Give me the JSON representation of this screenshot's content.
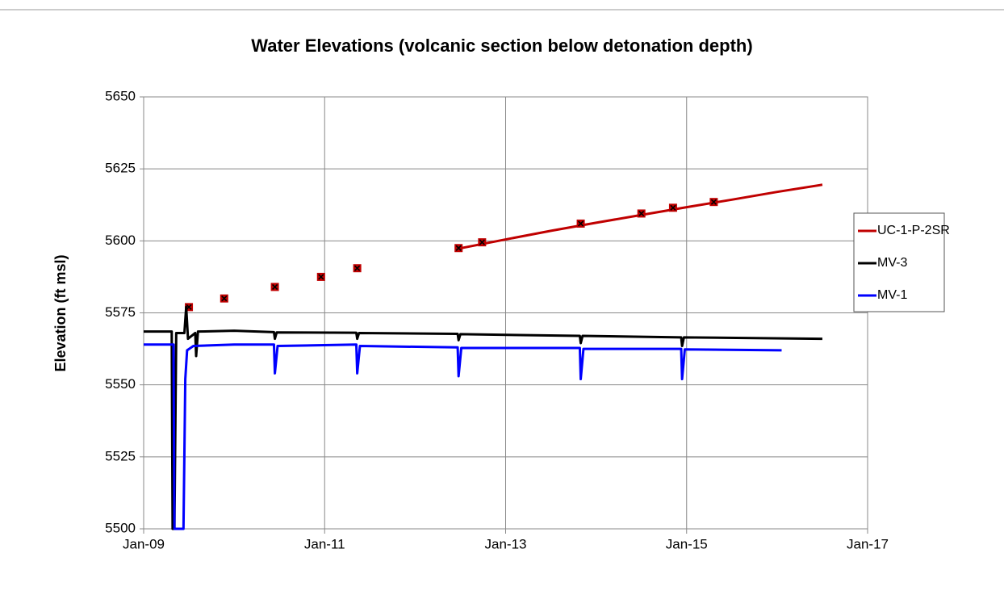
{
  "chart_data": {
    "type": "line",
    "title": "Water Elevations (volcanic section below detonation depth)",
    "y_label": "Elevation (ft msl)",
    "xlim": [
      2009,
      2017
    ],
    "xticks": [
      {
        "value": 2009,
        "label": "Jan-09"
      },
      {
        "value": 2011,
        "label": "Jan-11"
      },
      {
        "value": 2013,
        "label": "Jan-13"
      },
      {
        "value": 2015,
        "label": "Jan-15"
      },
      {
        "value": 2017,
        "label": "Jan-17"
      }
    ],
    "ylim": [
      5500,
      5650
    ],
    "yticks": [
      5500,
      5525,
      5550,
      5575,
      5600,
      5625,
      5650
    ],
    "grid": true,
    "legend": "right",
    "series": [
      {
        "name": "UC-1-P-2SR",
        "color": "#c00000",
        "x": [
          2012.48,
          2013,
          2013.5,
          2014,
          2014.5,
          2015,
          2015.5,
          2016,
          2016.5
        ],
        "values": [
          5597.3,
          5600.5,
          5603.5,
          5606.3,
          5609,
          5611.7,
          5614.3,
          5617,
          5619.5
        ],
        "points": {
          "x": [
            2009.5,
            2009.89,
            2010.45,
            2010.96,
            2011.36,
            2012.48,
            2012.74,
            2013.83,
            2014.5,
            2014.85,
            2015.3
          ],
          "values": [
            5577,
            5580,
            5584,
            5587.5,
            5590.5,
            5597.5,
            5599.5,
            5606,
            5609.5,
            5611.5,
            5613.5
          ]
        }
      },
      {
        "name": "MV-3",
        "color": "#000000",
        "x": [
          2009,
          2009.31,
          2009.32,
          2009.34,
          2009.36,
          2009.45,
          2009.47,
          2009.49,
          2009.57,
          2009.58,
          2009.6,
          2010,
          2010.44,
          2010.45,
          2010.47,
          2011.35,
          2011.36,
          2011.38,
          2012.47,
          2012.48,
          2012.5,
          2013.82,
          2013.83,
          2013.85,
          2014.94,
          2014.95,
          2014.97,
          2016.5
        ],
        "values": [
          5568.5,
          5568.5,
          5500,
          5500,
          5568,
          5568,
          5577,
          5566,
          5568,
          5560,
          5568.5,
          5568.8,
          5568.3,
          5566,
          5568.2,
          5568.1,
          5566,
          5568,
          5567.7,
          5565.5,
          5567.6,
          5567,
          5564.5,
          5567,
          5566.5,
          5563.5,
          5566.5,
          5566
        ]
      },
      {
        "name": "MV-1",
        "color": "#0000ff",
        "x": [
          2009,
          2009.33,
          2009.34,
          2009.44,
          2009.46,
          2009.48,
          2009.55,
          2010,
          2010.44,
          2010.45,
          2010.48,
          2011.35,
          2011.36,
          2011.39,
          2012.47,
          2012.48,
          2012.51,
          2013.82,
          2013.83,
          2013.86,
          2014.94,
          2014.95,
          2014.98,
          2016.05
        ],
        "values": [
          5564,
          5564,
          5500,
          5500,
          5552,
          5562,
          5563.5,
          5564,
          5564,
          5554,
          5563.5,
          5564,
          5554,
          5563.5,
          5563,
          5553,
          5562.8,
          5562.8,
          5552,
          5562.5,
          5562.5,
          5552,
          5562.3,
          5562
        ]
      }
    ]
  }
}
